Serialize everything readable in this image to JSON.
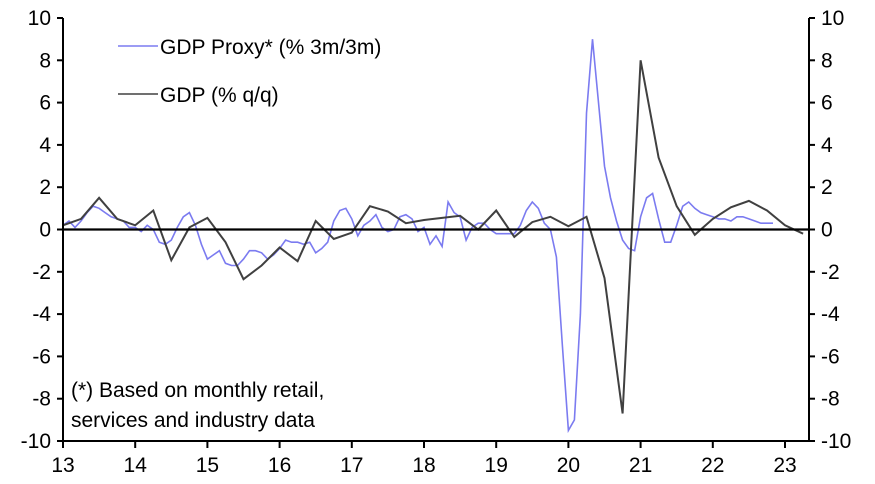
{
  "chart_data": {
    "type": "line",
    "title": "",
    "xlabel": "",
    "ylabel": "",
    "xlim": [
      2013,
      2023.4
    ],
    "ylim": [
      -10,
      10
    ],
    "yticks": [
      -10,
      -8,
      -6,
      -4,
      -2,
      0,
      2,
      4,
      6,
      8,
      10
    ],
    "ytick_labels": [
      "-10",
      "-8",
      "-6",
      "-4",
      "-2",
      "0",
      "2",
      "4",
      "6",
      "8",
      "10"
    ],
    "xticks": [
      2013,
      2014,
      2015,
      2016,
      2017,
      2018,
      2019,
      2020,
      2021,
      2022,
      2023
    ],
    "xtick_labels": [
      "13",
      "14",
      "15",
      "16",
      "17",
      "18",
      "19",
      "20",
      "21",
      "22",
      "23"
    ],
    "grid": false,
    "legend_position": "top-left",
    "annotation": [
      "(*) Based on monthly retail,",
      "services and industry data"
    ],
    "series": [
      {
        "name": "GDP Proxy* (% 3m/3m)",
        "color": "#7b7bf0",
        "frequency": "monthly",
        "start": 2013.0,
        "values": [
          0.2,
          0.4,
          0.1,
          0.4,
          0.8,
          1.1,
          1.0,
          0.8,
          0.6,
          0.5,
          0.4,
          0.1,
          0.1,
          -0.1,
          0.2,
          0.0,
          -0.6,
          -0.7,
          -0.5,
          0.1,
          0.6,
          0.8,
          0.2,
          -0.7,
          -1.4,
          -1.2,
          -1.0,
          -1.6,
          -1.7,
          -1.7,
          -1.4,
          -1.0,
          -1.0,
          -1.1,
          -1.4,
          -1.2,
          -0.9,
          -0.5,
          -0.6,
          -0.6,
          -0.7,
          -0.6,
          -1.1,
          -0.9,
          -0.6,
          0.4,
          0.9,
          1.0,
          0.5,
          -0.3,
          0.2,
          0.4,
          0.7,
          0.1,
          -0.1,
          0.0,
          0.6,
          0.7,
          0.5,
          -0.1,
          0.1,
          -0.7,
          -0.3,
          -0.8,
          1.3,
          0.8,
          0.6,
          -0.5,
          0.1,
          0.3,
          0.3,
          0.0,
          -0.2,
          -0.2,
          -0.2,
          -0.2,
          0.2,
          0.9,
          1.3,
          1.0,
          0.3,
          0.0,
          -1.3,
          -5.5,
          -9.5,
          -9.0,
          -4.0,
          5.5,
          9.0,
          6.0,
          3.0,
          1.5,
          0.4,
          -0.5,
          -0.9,
          -1.0,
          0.6,
          1.5,
          1.7,
          0.5,
          -0.6,
          -0.6,
          0.2,
          1.1,
          1.3,
          1.0,
          0.8,
          0.7,
          0.6,
          0.5,
          0.5,
          0.4,
          0.6,
          0.6,
          0.5,
          0.4,
          0.3,
          0.3,
          0.3
        ]
      },
      {
        "name": "GDP (% q/q)",
        "color": "#404040",
        "frequency": "quarterly",
        "start": 2013.0,
        "values": [
          0.2,
          0.5,
          1.5,
          0.5,
          0.2,
          0.9,
          -1.45,
          0.1,
          0.55,
          -0.6,
          -2.35,
          -1.7,
          -0.85,
          -1.5,
          0.4,
          -0.45,
          -0.15,
          1.1,
          0.85,
          0.3,
          0.45,
          0.55,
          0.65,
          0.0,
          0.9,
          -0.35,
          0.35,
          0.6,
          0.15,
          0.6,
          -2.3,
          -8.7,
          8.0,
          3.4,
          1.1,
          -0.25,
          0.5,
          1.05,
          1.35,
          0.9,
          0.2,
          -0.2
        ]
      }
    ]
  }
}
